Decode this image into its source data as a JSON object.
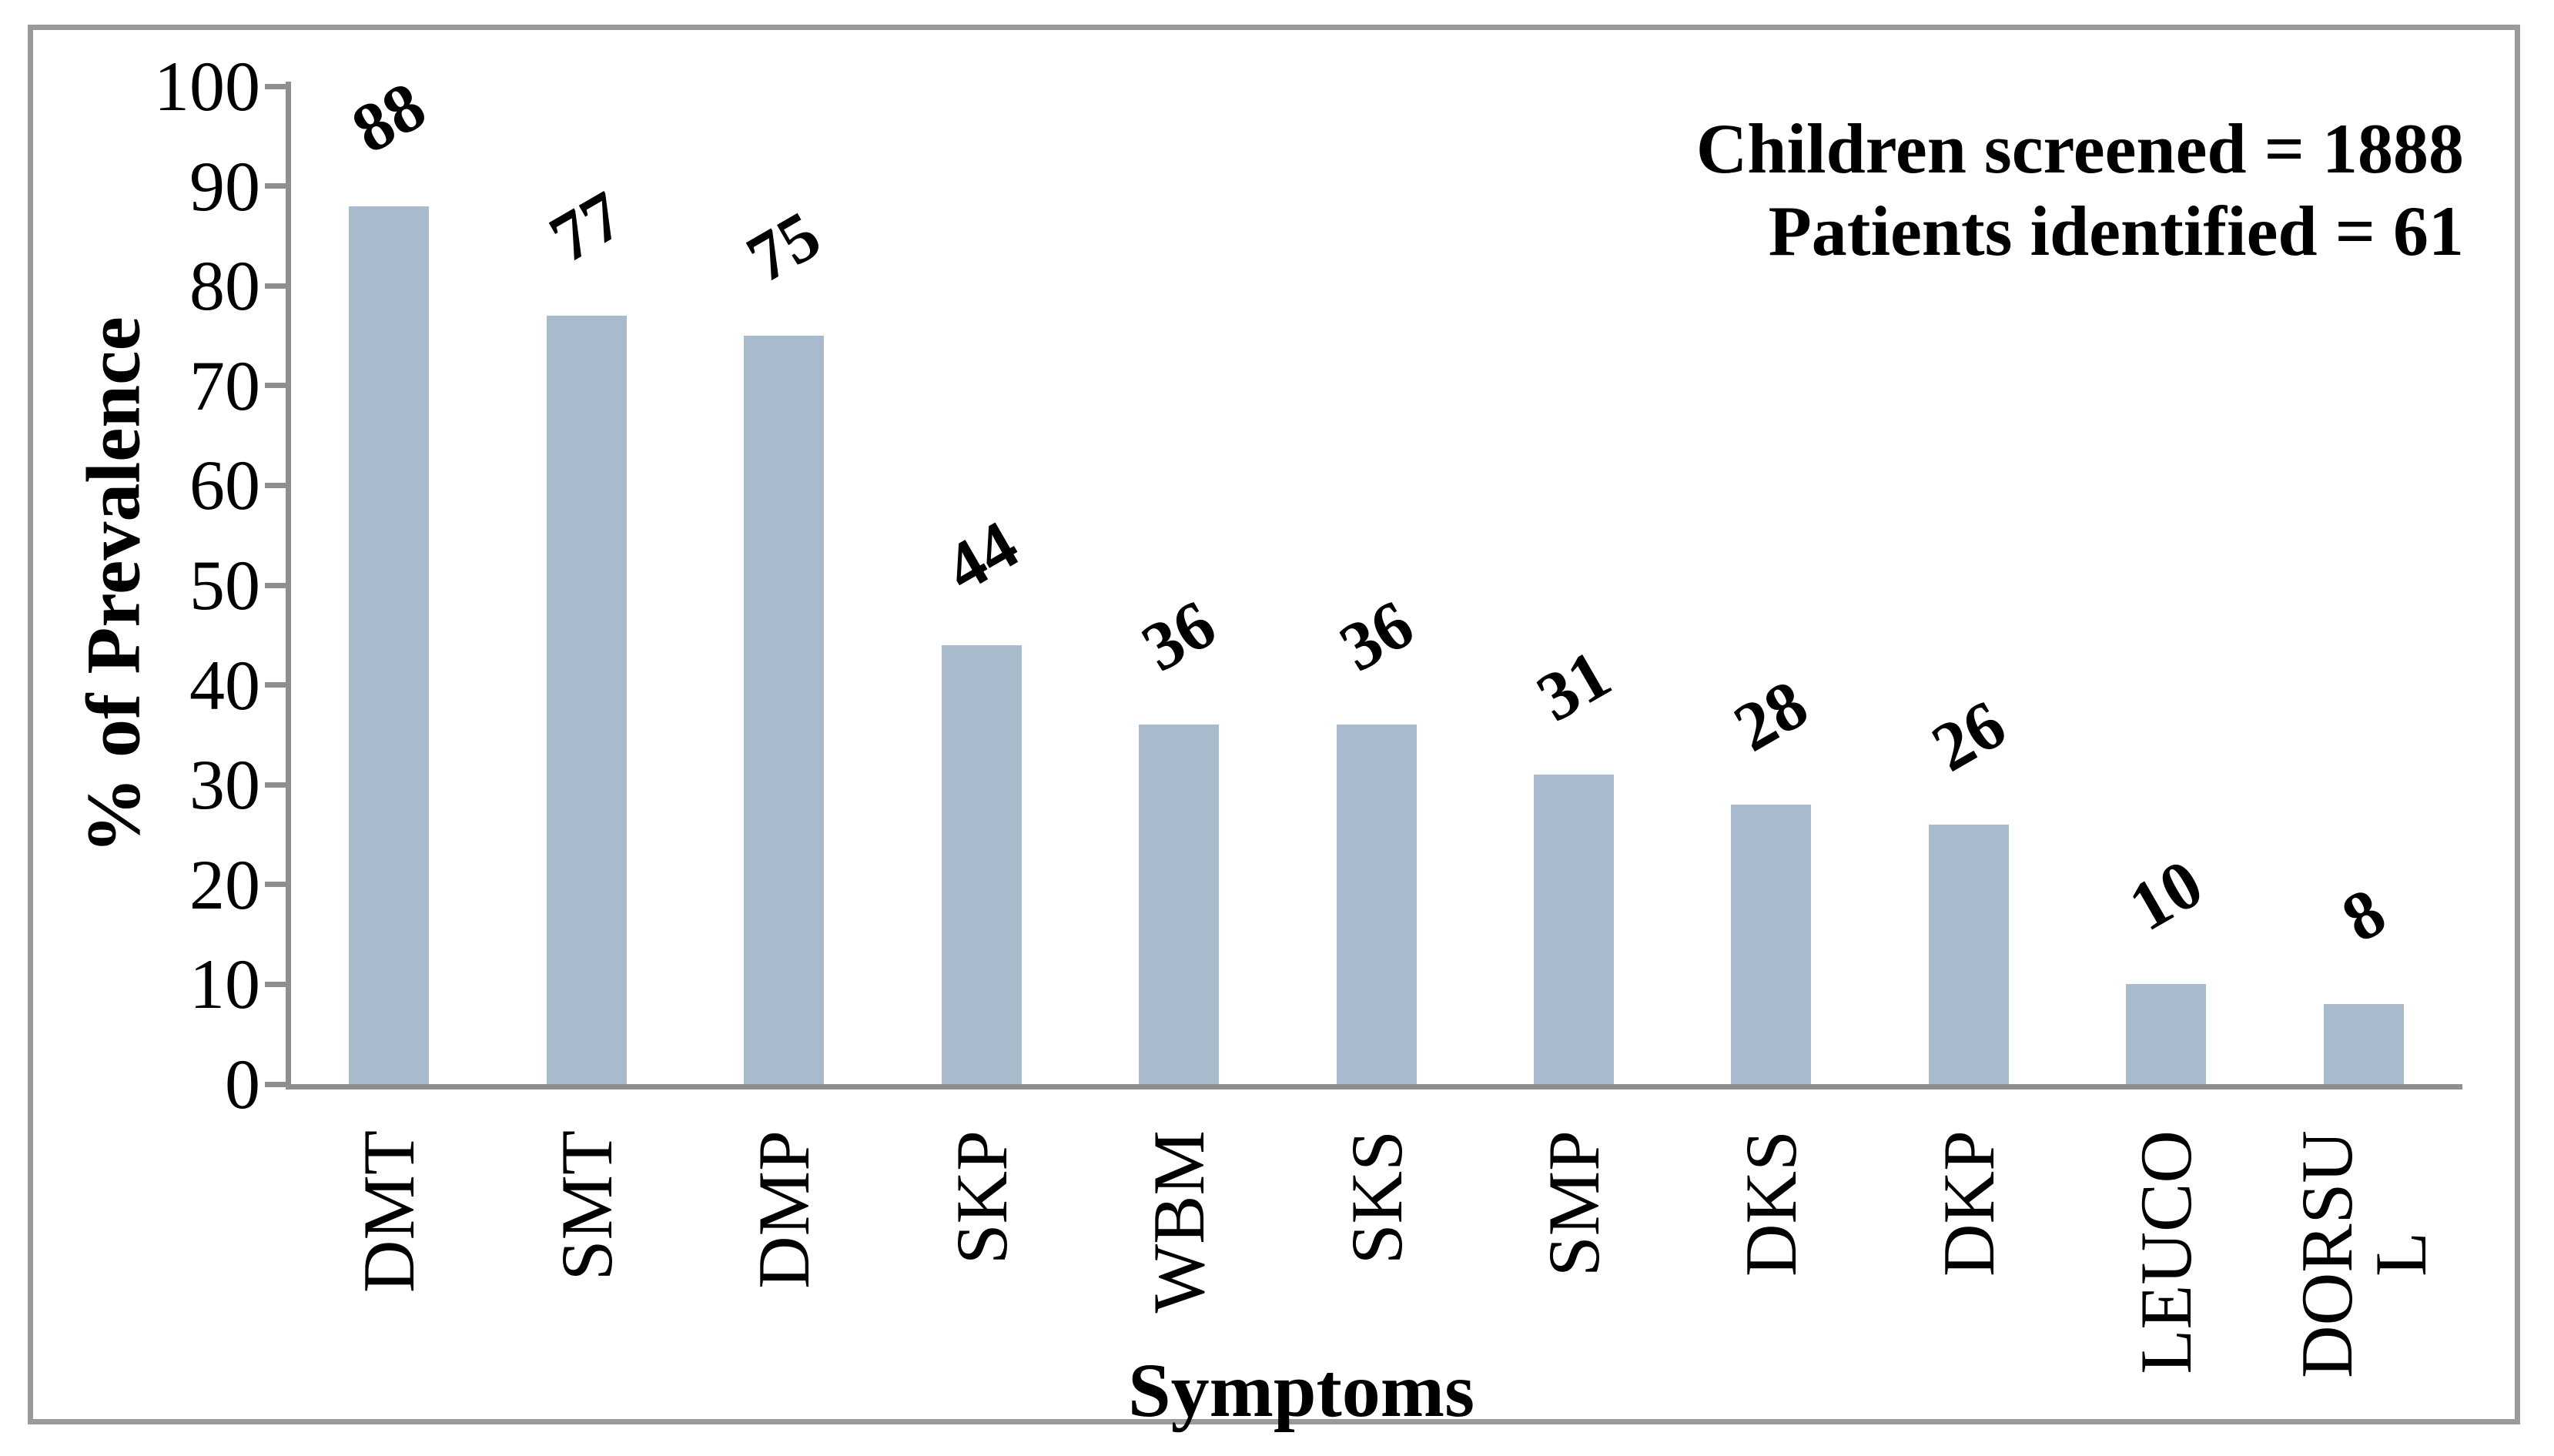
{
  "chart_data": {
    "type": "bar",
    "categories": [
      "DMT",
      "SMT",
      "DMP",
      "SKP",
      "WBM",
      "SKS",
      "SMP",
      "DKS",
      "DKP",
      "LEUCO",
      "DORSU\nL"
    ],
    "values": [
      88,
      77,
      75,
      44,
      36,
      36,
      31,
      28,
      26,
      10,
      8
    ],
    "xlabel": "Symptoms",
    "ylabel": "% of Prevalence",
    "ylim": [
      0,
      100
    ],
    "yticks": [
      0,
      10,
      20,
      30,
      40,
      50,
      60,
      70,
      80,
      90,
      100
    ],
    "grid": false,
    "legend_position": "none",
    "bar_color": "#A9BACD",
    "axis_color": "#8f8f8f",
    "frame_border_color": "#9a9a9a",
    "data_label_color": "#000000",
    "annotation_lines": [
      "Children screened = 1888",
      "Patients identified = 61"
    ]
  }
}
